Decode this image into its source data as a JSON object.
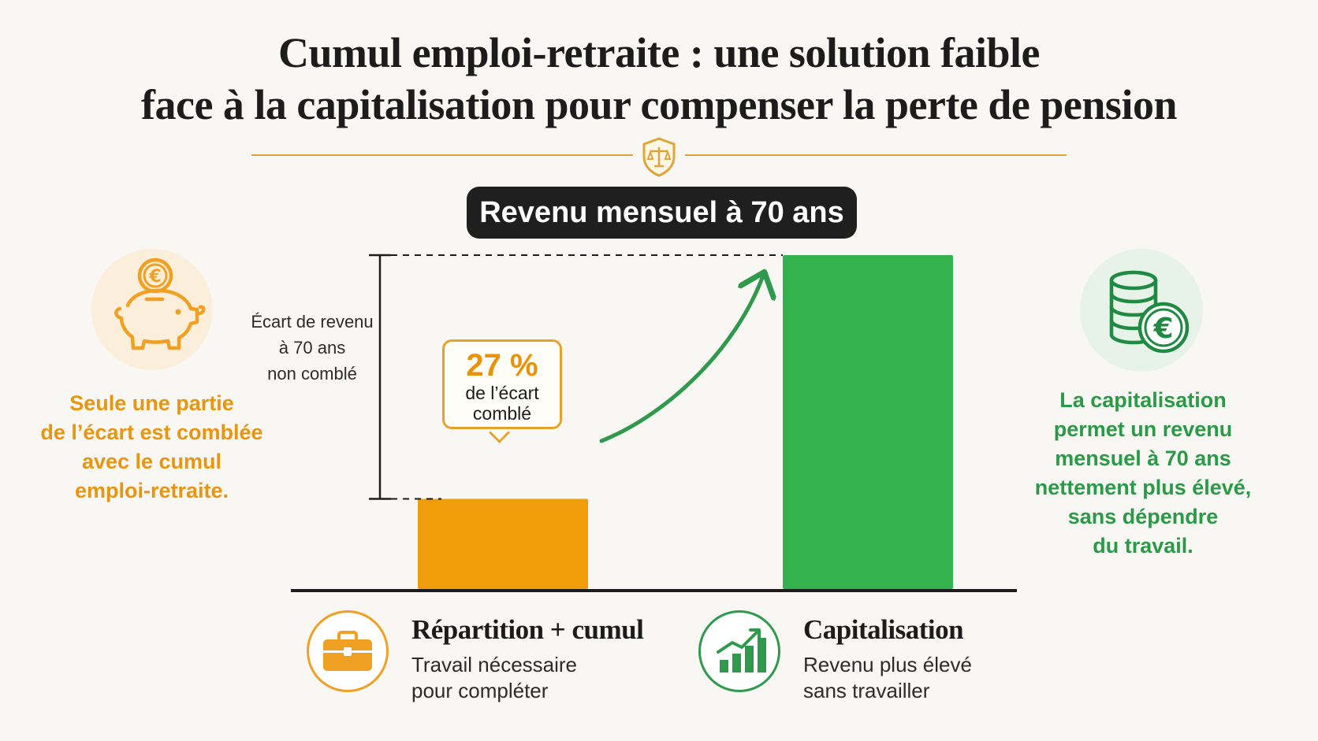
{
  "header": {
    "title_line1": "Cumul emploi-retraite : une solution faible",
    "title_line2": "face à la capitalisation pour compenser la perte de pension",
    "divider_icon": "balance-scale-shield-icon"
  },
  "chart_data": {
    "type": "bar",
    "title": "Revenu mensuel à 70 ans",
    "categories": [
      "Répartition + cumul",
      "Capitalisation"
    ],
    "values": [
      27,
      100
    ],
    "colors": [
      "#f09d0c",
      "#34b24e"
    ],
    "gap_annotation": {
      "label_lines": [
        "Écart de revenu",
        "à 70 ans",
        "non comblé"
      ]
    },
    "callout": {
      "value": "27 %",
      "text_lines": [
        "de l’écart",
        "comblé"
      ]
    },
    "arrow": {
      "color": "#2f9a4c",
      "from": "Répartition + cumul",
      "to": "Capitalisation"
    }
  },
  "left_panel": {
    "icon": "piggy-bank-euro-icon",
    "note_lines": [
      "Seule une partie",
      "de l’écart est comblée",
      "avec le cumul",
      "emploi-retraite."
    ],
    "color": "#e8950f"
  },
  "right_panel": {
    "icon": "coins-euro-icon",
    "note_lines": [
      "La capitalisation",
      "permet un revenu",
      "mensuel à 70 ans",
      "nettement plus élevé,",
      "sans dépendre",
      "du travail."
    ],
    "color": "#2a9a47"
  },
  "legend": [
    {
      "icon": "briefcase-icon",
      "title": "Répartition + cumul",
      "desc_lines": [
        "Travail nécessaire",
        "pour compléter"
      ],
      "color": "#f0a124"
    },
    {
      "icon": "growth-chart-icon",
      "title": "Capitalisation",
      "desc_lines": [
        "Revenu plus élevé",
        "sans travailler"
      ],
      "color": "#2f9a4c"
    }
  ]
}
